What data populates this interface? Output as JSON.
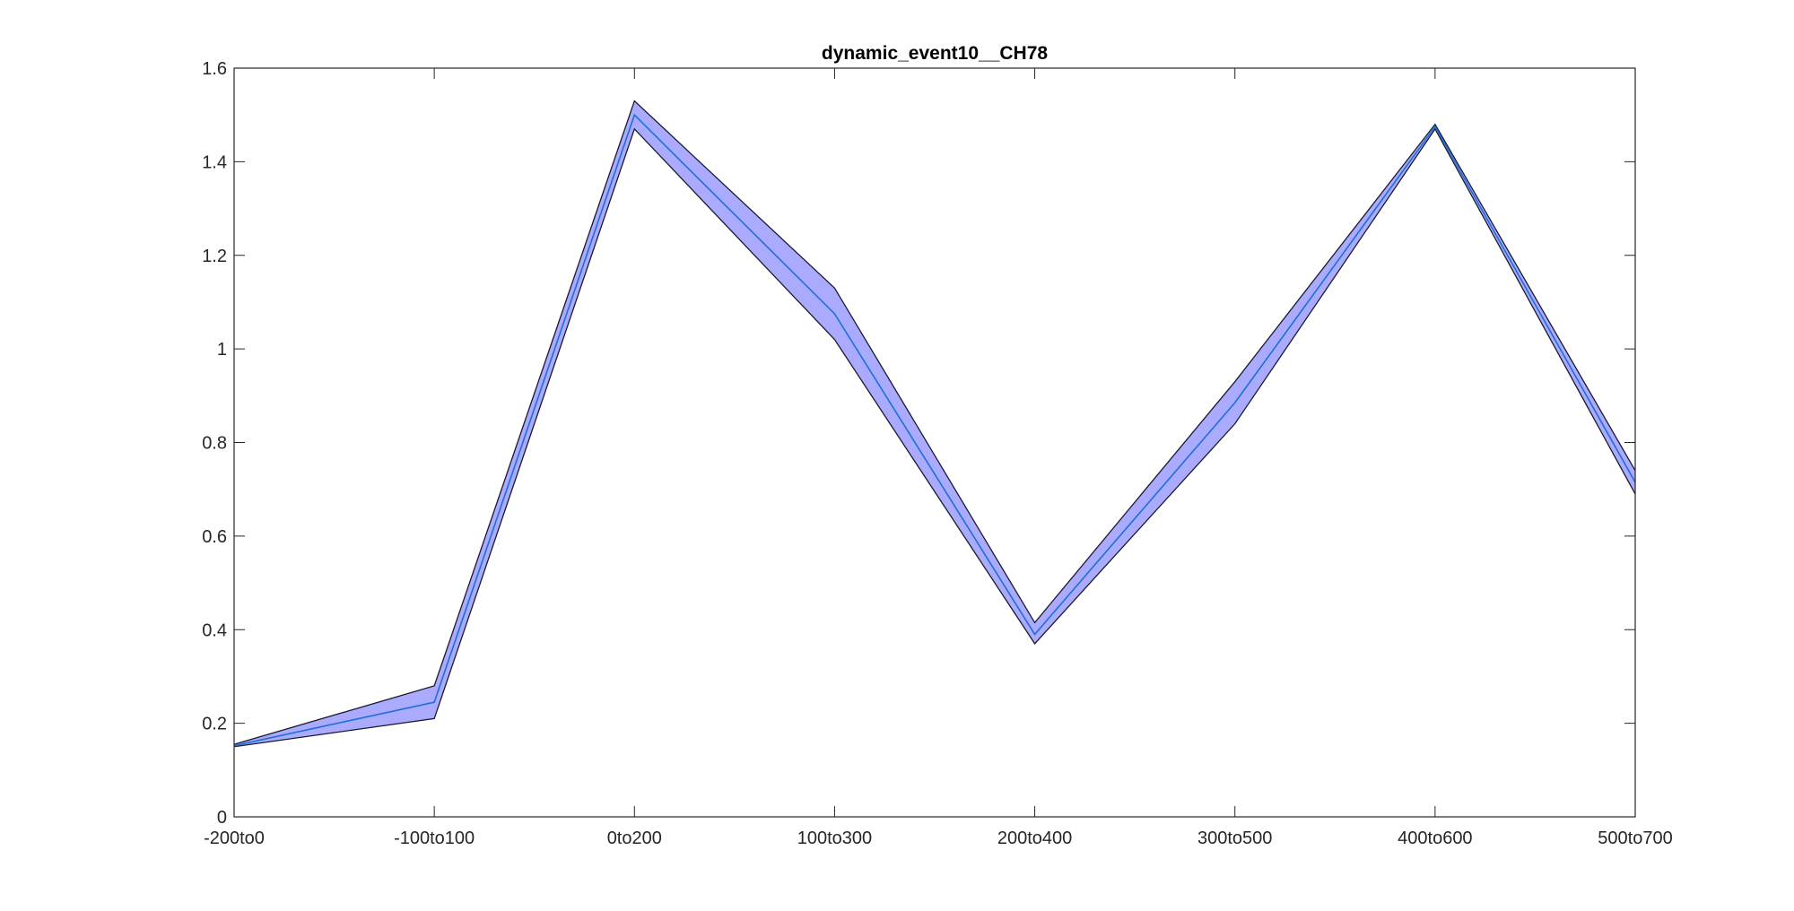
{
  "chart_data": {
    "type": "area",
    "title": "dynamic_event10__CH78",
    "xlabel": "",
    "ylabel": "",
    "categories": [
      "-200to0",
      "-100to100",
      "0to200",
      "100to300",
      "200to400",
      "300to500",
      "400to600",
      "500to700"
    ],
    "ylim": [
      0,
      1.6
    ],
    "yticks": [
      0,
      0.2,
      0.4,
      0.6,
      0.8,
      1,
      1.2,
      1.4,
      1.6
    ],
    "ytick_labels": [
      "0",
      "0.2",
      "0.4",
      "0.6",
      "0.8",
      "1",
      "1.2",
      "1.4",
      "1.6"
    ],
    "grid": false,
    "legend": "none",
    "series": [
      {
        "values": [
          0.152,
          0.245,
          1.5,
          1.075,
          0.39,
          0.885,
          1.475,
          0.715
        ],
        "upper": [
          0.155,
          0.28,
          1.53,
          1.13,
          0.415,
          0.93,
          1.48,
          0.74
        ],
        "lower": [
          0.15,
          0.21,
          1.47,
          1.02,
          0.37,
          0.84,
          1.47,
          0.69
        ],
        "line_color": "#1f6fd6",
        "band_color": "#aaaaff",
        "band_edge_color": "#1a1a2e"
      }
    ],
    "axis_color": "#262626"
  }
}
